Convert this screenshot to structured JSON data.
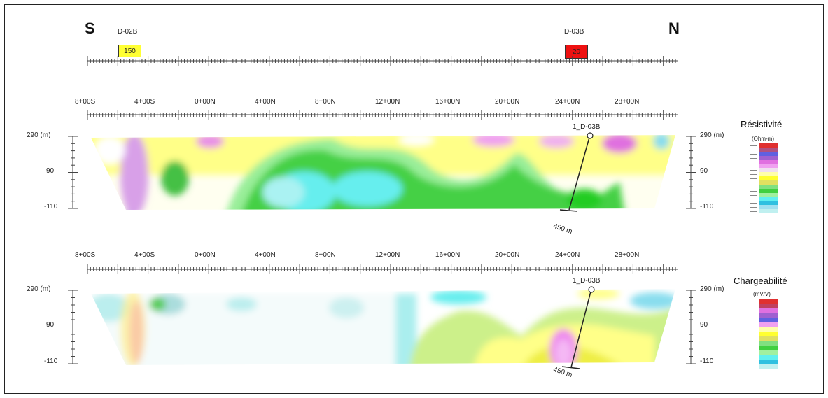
{
  "profile": {
    "south_label": "S",
    "north_label": "N",
    "holes": [
      {
        "name": "D-02B",
        "value": "150",
        "color": "#ffff33"
      },
      {
        "name": "D-03B",
        "value": "20",
        "color": "#ee1111"
      }
    ]
  },
  "stations": [
    "8+00S",
    "4+00S",
    "0+00N",
    "4+00N",
    "8+00N",
    "12+00N",
    "16+00N",
    "20+00N",
    "24+00N",
    "28+00N"
  ],
  "elevations": [
    "290 (m)",
    "90",
    "-110"
  ],
  "drillhole": {
    "name": "1_D-03B",
    "depth": "450 m"
  },
  "resistivity": {
    "title": "Résistivité",
    "unit": "(Ohm-m)",
    "colors": [
      "#e03030",
      "#b05080",
      "#6060e0",
      "#a060d0",
      "#e070e0",
      "#f0a0f0",
      "#f0e0f0",
      "#ffffaa",
      "#ffff30",
      "#e0e060",
      "#80e080",
      "#40d040",
      "#a0f0a0",
      "#60f0f0",
      "#30c0e0",
      "#a0e0f0",
      "#c0f0f0"
    ]
  },
  "chargeability": {
    "title": "Chargeabilité",
    "unit": "(mV/V)",
    "colors": [
      "#e03030",
      "#c04060",
      "#e070e0",
      "#a060d0",
      "#6060e0",
      "#f0a0f0",
      "#ffffaa",
      "#ffff30",
      "#e0e060",
      "#80e080",
      "#40d040",
      "#a0f0a0",
      "#60f0f0",
      "#30c0e0",
      "#c0f0f0"
    ]
  }
}
